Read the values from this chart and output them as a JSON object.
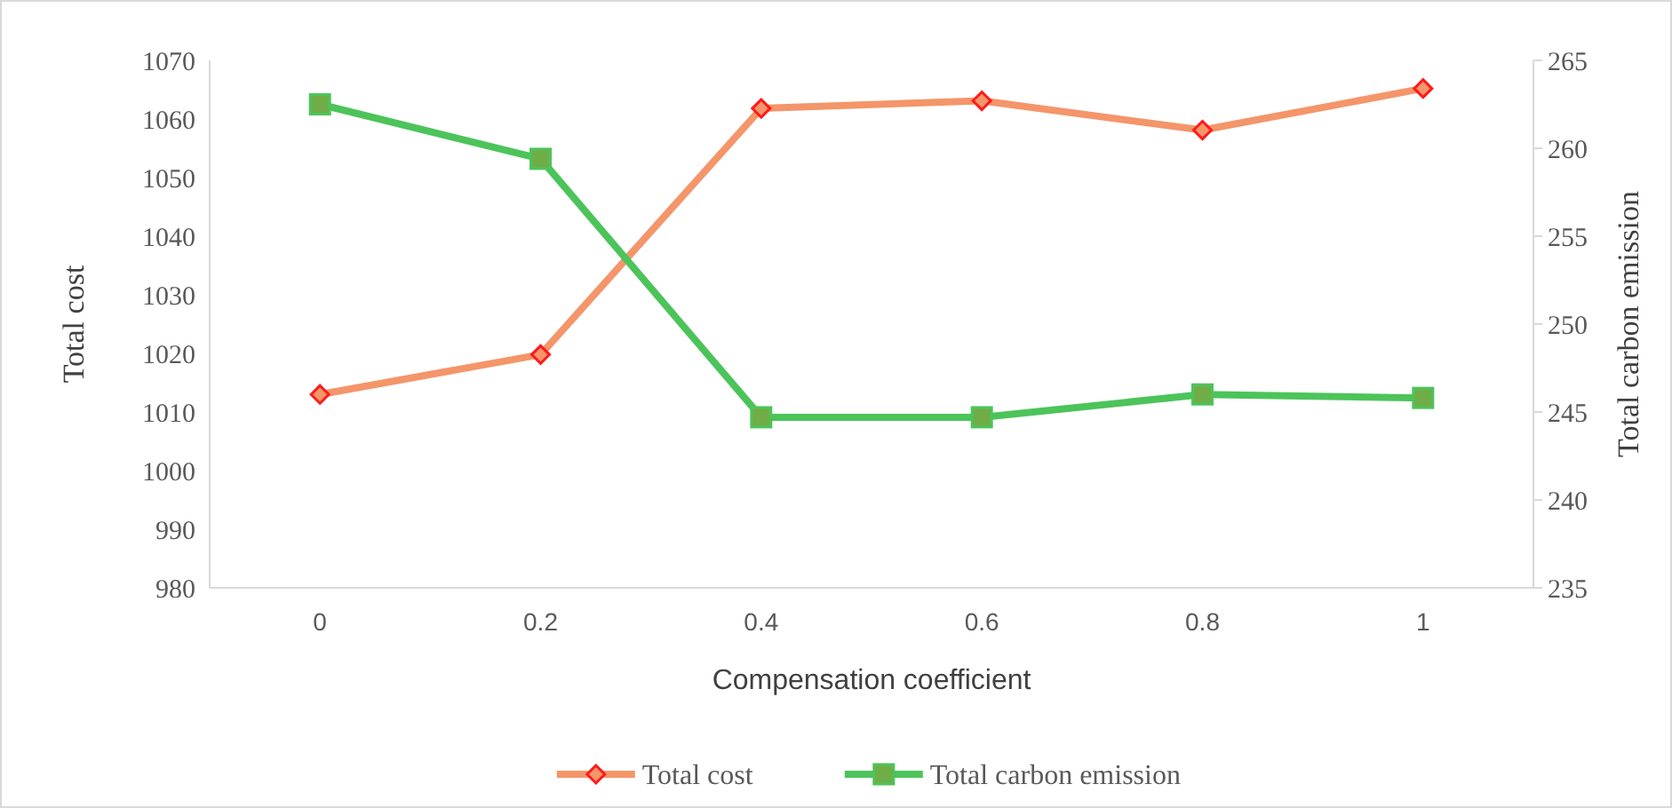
{
  "chart_data": {
    "type": "line",
    "xlabel": "Compensation coefficient",
    "ylabel": "Total cost",
    "y2label": "Total carbon emission",
    "categories": [
      "0",
      "0.2",
      "0.4",
      "0.6",
      "0.8",
      "1"
    ],
    "ylim": [
      980,
      1070
    ],
    "yticks": [
      980,
      990,
      1000,
      1010,
      1020,
      1030,
      1040,
      1050,
      1060,
      1070
    ],
    "y2lim": [
      235,
      265
    ],
    "y2ticks": [
      235,
      240,
      245,
      250,
      255,
      260,
      265
    ],
    "grid": false,
    "legend": "bottom",
    "line_style": "solid",
    "series": [
      {
        "name": "Total cost",
        "color": "#f4956a",
        "marker": "diamond",
        "values": [
          1013,
          1019.8,
          1061.8,
          1063.1,
          1058.1,
          1065.2
        ]
      },
      {
        "name": "Total carbon emission",
        "color": "#4cc45a",
        "marker": "square",
        "axis": "y2",
        "values": [
          262.5,
          259.4,
          244.7,
          244.7,
          246.0,
          245.8
        ]
      }
    ]
  }
}
